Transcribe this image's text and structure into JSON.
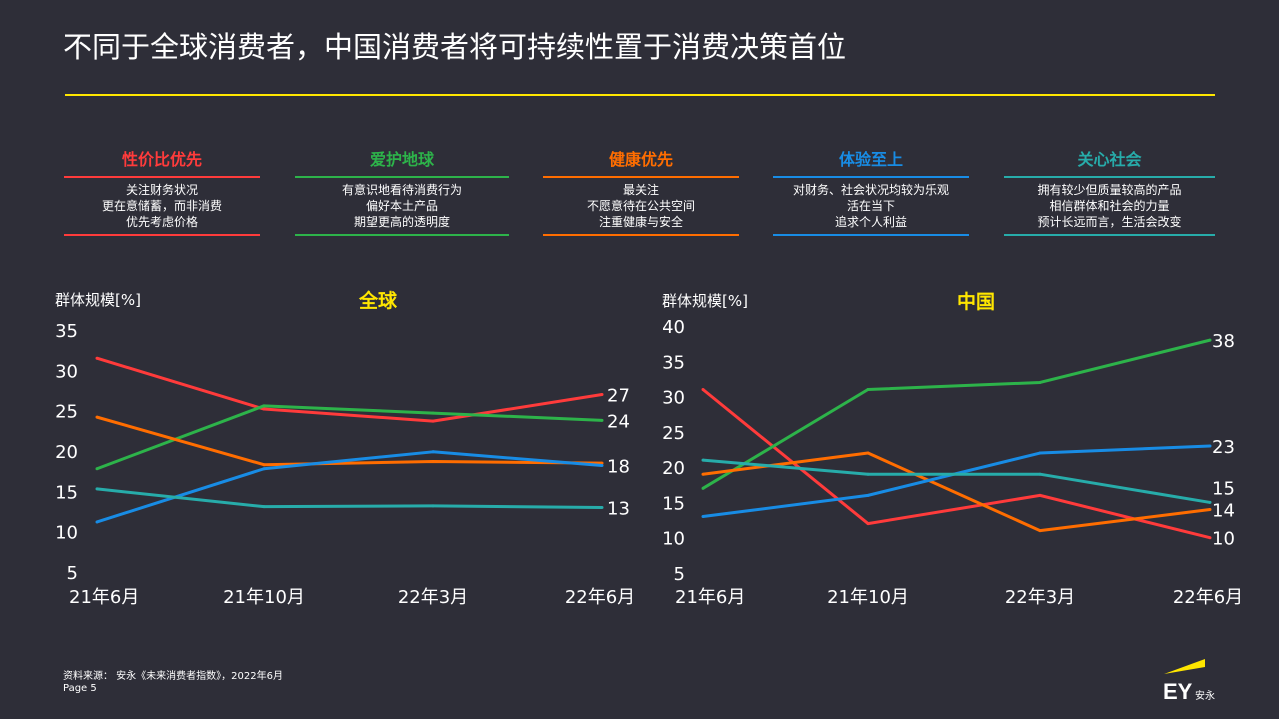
{
  "title": "不同于全球消费者，中国消费者将可持续性置于消费决策首位",
  "segments": [
    {
      "name": "性价比优先",
      "color": "#ff3b3b",
      "lines": [
        "关注财务状况",
        "更在意储蓄，而非消费",
        "优先考虑价格"
      ]
    },
    {
      "name": "爱护地球",
      "color": "#2db34a",
      "lines": [
        "有意识地看待消费行为",
        "偏好本土产品",
        "期望更高的透明度"
      ]
    },
    {
      "name": "健康优先",
      "color": "#ff6d00",
      "lines": [
        "最关注",
        "不愿意待在公共空间",
        "注重健康与安全"
      ]
    },
    {
      "name": "体验至上",
      "color": "#188ce5",
      "lines": [
        "对财务、社会状况均较为乐观",
        "活在当下",
        "追求个人利益"
      ]
    },
    {
      "name": "关心社会",
      "color": "#27acaa",
      "lines": [
        "拥有较少但质量较高的产品",
        "相信群体和社会的力量",
        "预计长远而言，生活会改变"
      ]
    }
  ],
  "chart_data": [
    {
      "type": "line",
      "title": "全球",
      "ylabel": "群体规模[%]",
      "categories": [
        "21年6月",
        "21年10月",
        "22年3月",
        "22年6月"
      ],
      "yticks": [
        5,
        10,
        15,
        20,
        25,
        30,
        35
      ],
      "ylim": [
        5,
        35
      ],
      "grid": false,
      "series": [
        {
          "segment": "性价比优先",
          "color": "#ff3b3b",
          "values": [
            31.5,
            25.2,
            23.7,
            27
          ],
          "end_label": "27"
        },
        {
          "segment": "爱护地球",
          "color": "#2db34a",
          "values": [
            17.8,
            25.6,
            24.7,
            23.8
          ],
          "end_label": "24"
        },
        {
          "segment": "健康优先",
          "color": "#ff6d00",
          "values": [
            24.2,
            18.3,
            18.7,
            18.5
          ],
          "end_label": ""
        },
        {
          "segment": "体验至上",
          "color": "#188ce5",
          "values": [
            11.2,
            17.8,
            19.9,
            18.2
          ],
          "end_label": "18"
        },
        {
          "segment": "关心社会",
          "color": "#27acaa",
          "values": [
            15.3,
            13.1,
            13.2,
            13
          ],
          "end_label": "13"
        }
      ]
    },
    {
      "type": "line",
      "title": "中国",
      "ylabel": "群体规模[%]",
      "categories": [
        "21年6月",
        "21年10月",
        "22年3月",
        "22年6月"
      ],
      "yticks": [
        5,
        10,
        15,
        20,
        25,
        30,
        35,
        40
      ],
      "ylim": [
        5,
        40
      ],
      "grid": false,
      "series": [
        {
          "segment": "性价比优先",
          "color": "#ff3b3b",
          "values": [
            31,
            12,
            16,
            10
          ],
          "end_label": "10"
        },
        {
          "segment": "爱护地球",
          "color": "#2db34a",
          "values": [
            17,
            31,
            32,
            38
          ],
          "end_label": "38"
        },
        {
          "segment": "健康优先",
          "color": "#ff6d00",
          "values": [
            19,
            22,
            11,
            14
          ],
          "end_label": "14"
        },
        {
          "segment": "体验至上",
          "color": "#188ce5",
          "values": [
            13,
            16,
            22,
            23
          ],
          "end_label": "23"
        },
        {
          "segment": "关心社会",
          "color": "#27acaa",
          "values": [
            21,
            19,
            19,
            15
          ],
          "end_label": "15"
        }
      ]
    }
  ],
  "footer": {
    "source": "资料来源：  安永《未来消费者指数》，2022年6月",
    "page": "Page 5"
  },
  "logo": {
    "text": "EY",
    "sub": "安永",
    "accent": "#ffe600"
  }
}
